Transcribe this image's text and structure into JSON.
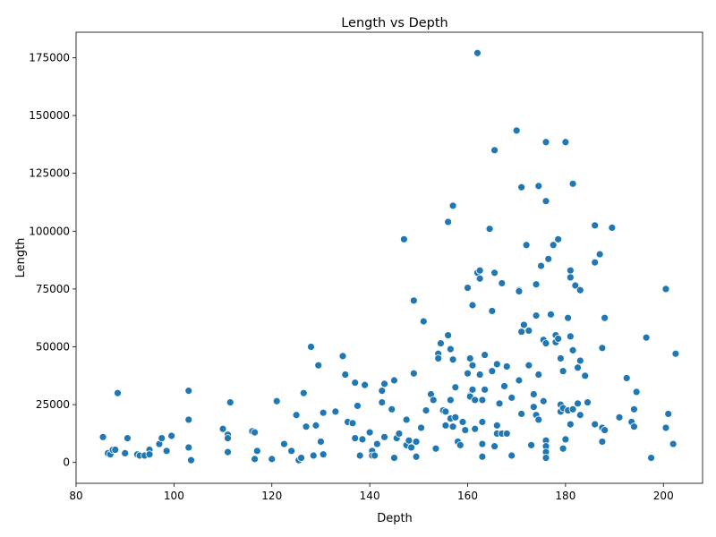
{
  "chart_data": {
    "type": "scatter",
    "title": "Length vs Depth",
    "xlabel": "Depth",
    "ylabel": "Length",
    "xlim": [
      80,
      208
    ],
    "ylim": [
      -9000,
      186000
    ],
    "xticks": [
      80,
      100,
      120,
      140,
      160,
      180,
      200
    ],
    "yticks": [
      0,
      25000,
      50000,
      75000,
      100000,
      125000,
      150000,
      175000
    ],
    "grid": false,
    "legend": "none",
    "colors": {
      "marker": "#1f77b4",
      "marker_edge": "#ffffff",
      "axes": "#000000"
    },
    "points": [
      [
        85.5,
        11000
      ],
      [
        86.5,
        4000
      ],
      [
        87,
        3500
      ],
      [
        87.5,
        5500
      ],
      [
        88,
        5500
      ],
      [
        88.5,
        30000
      ],
      [
        90,
        4000
      ],
      [
        90.5,
        10500
      ],
      [
        92.5,
        3500
      ],
      [
        93,
        3000
      ],
      [
        94,
        3000
      ],
      [
        95,
        5500
      ],
      [
        95,
        3500
      ],
      [
        97,
        8000
      ],
      [
        97.5,
        10500
      ],
      [
        98.5,
        5000
      ],
      [
        99.5,
        11500
      ],
      [
        103,
        31000
      ],
      [
        103,
        18500
      ],
      [
        103,
        6500
      ],
      [
        103.5,
        1000
      ],
      [
        110,
        14500
      ],
      [
        111,
        12000
      ],
      [
        111,
        10500
      ],
      [
        111,
        4500
      ],
      [
        111.5,
        26000
      ],
      [
        116,
        13500
      ],
      [
        116.5,
        13000
      ],
      [
        116.5,
        1500
      ],
      [
        117,
        5000
      ],
      [
        120,
        1500
      ],
      [
        121,
        26500
      ],
      [
        122.5,
        8000
      ],
      [
        124,
        5000
      ],
      [
        125,
        20500
      ],
      [
        125.5,
        1000
      ],
      [
        126,
        2000
      ],
      [
        126.5,
        30000
      ],
      [
        127,
        15500
      ],
      [
        128,
        50000
      ],
      [
        128.5,
        3000
      ],
      [
        129,
        16000
      ],
      [
        129.5,
        42000
      ],
      [
        130,
        9000
      ],
      [
        130.5,
        21500
      ],
      [
        130.5,
        3500
      ],
      [
        133,
        22000
      ],
      [
        134.5,
        46000
      ],
      [
        135,
        38000
      ],
      [
        135.5,
        17500
      ],
      [
        136.5,
        17000
      ],
      [
        137,
        34500
      ],
      [
        137,
        10500
      ],
      [
        137.5,
        24500
      ],
      [
        138,
        3000
      ],
      [
        138.5,
        10000
      ],
      [
        139,
        33500
      ],
      [
        140,
        13000
      ],
      [
        140.5,
        5000
      ],
      [
        140.5,
        3000
      ],
      [
        141,
        3000
      ],
      [
        141.5,
        8000
      ],
      [
        142.5,
        31000
      ],
      [
        142.5,
        26000
      ],
      [
        143,
        34000
      ],
      [
        143,
        11000
      ],
      [
        144.5,
        23000
      ],
      [
        145,
        35500
      ],
      [
        145,
        2000
      ],
      [
        145.5,
        10500
      ],
      [
        146,
        12500
      ],
      [
        147,
        96500
      ],
      [
        147.5,
        18500
      ],
      [
        147.5,
        7500
      ],
      [
        148,
        9500
      ],
      [
        148.5,
        6500
      ],
      [
        149,
        70000
      ],
      [
        149,
        38500
      ],
      [
        149.5,
        2500
      ],
      [
        149.5,
        9000
      ],
      [
        150.5,
        15000
      ],
      [
        151,
        61000
      ],
      [
        151.5,
        22500
      ],
      [
        152.5,
        29500
      ],
      [
        153,
        27000
      ],
      [
        153.5,
        6000
      ],
      [
        154,
        47000
      ],
      [
        154,
        45000
      ],
      [
        154.5,
        51500
      ],
      [
        155,
        22500
      ],
      [
        155.5,
        16000
      ],
      [
        155.5,
        22000
      ],
      [
        156,
        55000
      ],
      [
        156,
        104000
      ],
      [
        156.5,
        49000
      ],
      [
        156.5,
        27000
      ],
      [
        156.5,
        19000
      ],
      [
        157,
        111000
      ],
      [
        157,
        44500
      ],
      [
        157,
        15500
      ],
      [
        157.5,
        19500
      ],
      [
        157.5,
        32500
      ],
      [
        158,
        9000
      ],
      [
        158.5,
        7500
      ],
      [
        159,
        17500
      ],
      [
        159.5,
        14000
      ],
      [
        160,
        75500
      ],
      [
        160,
        38500
      ],
      [
        160.5,
        45000
      ],
      [
        160.5,
        29000
      ],
      [
        160.5,
        28500
      ],
      [
        161,
        68000
      ],
      [
        161,
        42000
      ],
      [
        161,
        31500
      ],
      [
        161.5,
        14500
      ],
      [
        161.5,
        27000
      ],
      [
        162,
        177000
      ],
      [
        162,
        82000
      ],
      [
        162.5,
        83000
      ],
      [
        162.5,
        79500
      ],
      [
        162.5,
        38000
      ],
      [
        163,
        27000
      ],
      [
        163,
        17500
      ],
      [
        163,
        8000
      ],
      [
        163,
        2500
      ],
      [
        163.5,
        46500
      ],
      [
        163.5,
        31500
      ],
      [
        164.5,
        101000
      ],
      [
        165,
        65500
      ],
      [
        165,
        39500
      ],
      [
        165.5,
        135000
      ],
      [
        165.5,
        82000
      ],
      [
        165.5,
        7000
      ],
      [
        166,
        42500
      ],
      [
        166,
        16000
      ],
      [
        166,
        12500
      ],
      [
        166.5,
        25500
      ],
      [
        167,
        77500
      ],
      [
        167,
        12500
      ],
      [
        167.5,
        33000
      ],
      [
        168,
        41500
      ],
      [
        168,
        12500
      ],
      [
        169,
        28000
      ],
      [
        169,
        3000
      ],
      [
        170,
        143500
      ],
      [
        170.5,
        74500
      ],
      [
        170.5,
        74000
      ],
      [
        170.5,
        35500
      ],
      [
        171,
        119000
      ],
      [
        171,
        56500
      ],
      [
        171,
        21000
      ],
      [
        171.5,
        59500
      ],
      [
        172,
        94000
      ],
      [
        172.5,
        42000
      ],
      [
        172.5,
        57000
      ],
      [
        173,
        7500
      ],
      [
        173.5,
        29500
      ],
      [
        173.5,
        24000
      ],
      [
        174,
        77000
      ],
      [
        174,
        63500
      ],
      [
        174,
        20500
      ],
      [
        174.5,
        119500
      ],
      [
        174.5,
        38000
      ],
      [
        174.5,
        18500
      ],
      [
        175,
        85000
      ],
      [
        175.5,
        53000
      ],
      [
        175.5,
        26500
      ],
      [
        176,
        138500
      ],
      [
        176,
        113000
      ],
      [
        176,
        51500
      ],
      [
        176,
        9500
      ],
      [
        176,
        7000
      ],
      [
        176,
        4500
      ],
      [
        176,
        2000
      ],
      [
        176.5,
        88000
      ],
      [
        177,
        64000
      ],
      [
        177.5,
        94000
      ],
      [
        178,
        55000
      ],
      [
        178,
        52000
      ],
      [
        178.5,
        96500
      ],
      [
        178.5,
        53500
      ],
      [
        179,
        45000
      ],
      [
        179,
        22000
      ],
      [
        179,
        25000
      ],
      [
        179.5,
        39500
      ],
      [
        179.5,
        23500
      ],
      [
        179.5,
        6000
      ],
      [
        180,
        138500
      ],
      [
        180,
        10000
      ],
      [
        180.5,
        62500
      ],
      [
        180.5,
        22500
      ],
      [
        181,
        83000
      ],
      [
        181,
        80000
      ],
      [
        181,
        54500
      ],
      [
        181,
        16500
      ],
      [
        181.5,
        120500
      ],
      [
        181.5,
        48500
      ],
      [
        181.5,
        23000
      ],
      [
        182,
        76500
      ],
      [
        182.5,
        41000
      ],
      [
        182.5,
        25500
      ],
      [
        183,
        20500
      ],
      [
        183,
        74500
      ],
      [
        183,
        44000
      ],
      [
        184,
        37500
      ],
      [
        184.5,
        26000
      ],
      [
        186,
        102500
      ],
      [
        186,
        86500
      ],
      [
        186,
        16500
      ],
      [
        187,
        90000
      ],
      [
        187.5,
        49500
      ],
      [
        187.5,
        15000
      ],
      [
        187.5,
        9000
      ],
      [
        188,
        62500
      ],
      [
        188,
        14000
      ],
      [
        189.5,
        101500
      ],
      [
        191,
        19500
      ],
      [
        192.5,
        36500
      ],
      [
        193.5,
        17500
      ],
      [
        194,
        23000
      ],
      [
        194,
        15500
      ],
      [
        194.5,
        30500
      ],
      [
        196.5,
        54000
      ],
      [
        197.5,
        2000
      ],
      [
        200.5,
        75000
      ],
      [
        200.5,
        15000
      ],
      [
        201,
        21000
      ],
      [
        202,
        8000
      ],
      [
        202.5,
        47000
      ]
    ]
  }
}
